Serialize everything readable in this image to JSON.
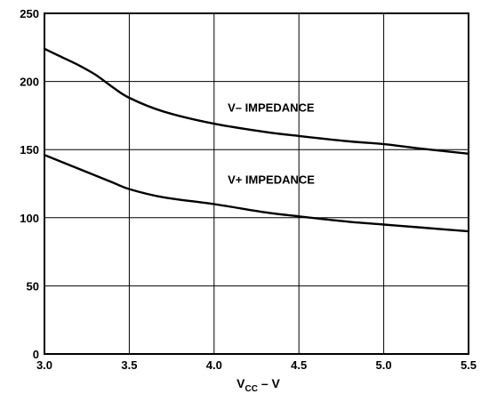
{
  "chart_data": {
    "type": "line",
    "title": "",
    "xlabel": {
      "main": "V",
      "subscript": "CC",
      "suffix": " – V"
    },
    "ylabel": "",
    "xlim": [
      3.0,
      5.5
    ],
    "ylim": [
      0,
      250
    ],
    "xticks": [
      "3.0",
      "3.5",
      "4.0",
      "4.5",
      "5.0",
      "5.5"
    ],
    "yticks": [
      "0",
      "50",
      "100",
      "150",
      "200",
      "250"
    ],
    "grid": true,
    "series": [
      {
        "name": "V– IMPEDANCE",
        "x": [
          3.0,
          3.1,
          3.2,
          3.3,
          3.4,
          3.5,
          3.7,
          4.0,
          4.3,
          4.5,
          4.8,
          5.0,
          5.2,
          5.5
        ],
        "y": [
          224,
          218,
          212,
          205,
          196,
          188,
          178,
          169,
          163,
          160,
          156,
          154,
          151,
          147
        ]
      },
      {
        "name": "V+ IMPEDANCE",
        "x": [
          3.0,
          3.2,
          3.4,
          3.5,
          3.7,
          4.0,
          4.3,
          4.5,
          4.8,
          5.0,
          5.2,
          5.5
        ],
        "y": [
          146,
          136,
          126,
          121,
          115,
          110,
          104,
          101,
          97,
          95,
          93,
          90
        ]
      }
    ],
    "annotations": [
      {
        "text": "V– IMPEDANCE",
        "x": 4.08,
        "y": 178
      },
      {
        "text": "V+ IMPEDANCE",
        "x": 4.08,
        "y": 125
      }
    ]
  }
}
